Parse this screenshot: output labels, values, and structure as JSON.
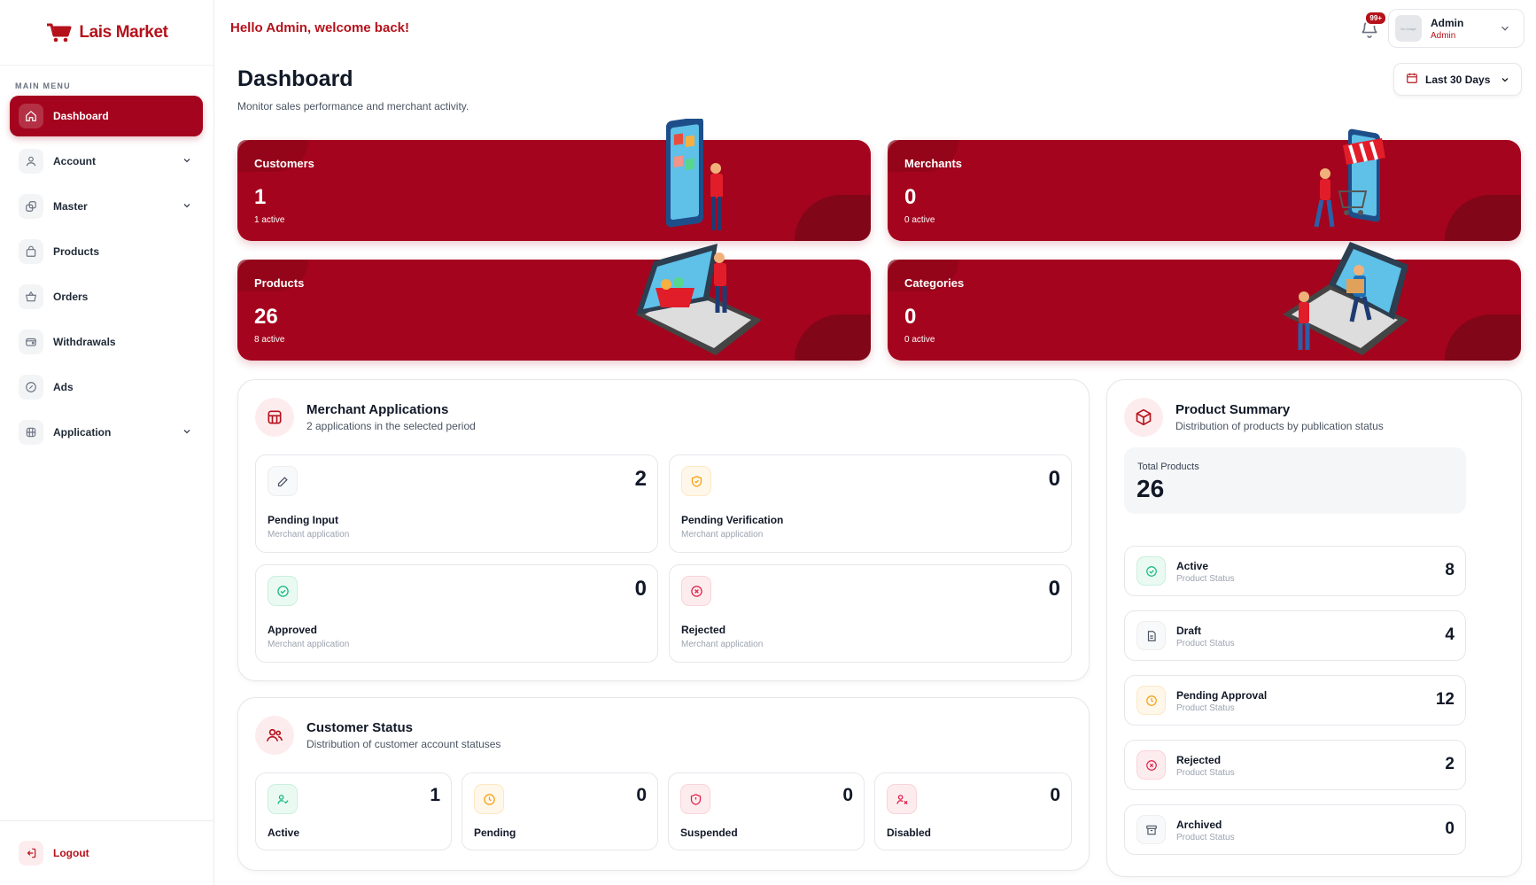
{
  "brand": {
    "name": "Lais Market"
  },
  "sidebar": {
    "menu_title": "MAIN MENU",
    "items": [
      {
        "label": "Dashboard",
        "icon": "home-icon"
      },
      {
        "label": "Account",
        "icon": "user-icon"
      },
      {
        "label": "Master",
        "icon": "layers-icon"
      },
      {
        "label": "Products",
        "icon": "bag-icon"
      },
      {
        "label": "Orders",
        "icon": "basket-icon"
      },
      {
        "label": "Withdrawals",
        "icon": "wallet-icon"
      },
      {
        "label": "Ads",
        "icon": "ad-icon"
      },
      {
        "label": "Application",
        "icon": "grid-icon"
      }
    ],
    "logout": "Logout"
  },
  "header": {
    "welcome": "Hello Admin, welcome back!",
    "notification_badge": "99+",
    "avatar_text": "No Image",
    "user_name": "Admin",
    "user_role": "Admin"
  },
  "page": {
    "title": "Dashboard",
    "subtitle": "Monitor sales performance and merchant activity.",
    "date_range": "Last 30 Days"
  },
  "stats": [
    {
      "label": "Customers",
      "value": "1",
      "active": "1 active"
    },
    {
      "label": "Merchants",
      "value": "0",
      "active": "0 active"
    },
    {
      "label": "Products",
      "value": "26",
      "active": "8 active"
    },
    {
      "label": "Categories",
      "value": "0",
      "active": "0 active"
    }
  ],
  "merchant_applications": {
    "title": "Merchant Applications",
    "subtitle": "2 applications in the selected period",
    "items": [
      {
        "label": "Pending Input",
        "meta": "Merchant application",
        "value": "2"
      },
      {
        "label": "Pending Verification",
        "meta": "Merchant application",
        "value": "0"
      },
      {
        "label": "Approved",
        "meta": "Merchant application",
        "value": "0"
      },
      {
        "label": "Rejected",
        "meta": "Merchant application",
        "value": "0"
      }
    ]
  },
  "customer_status": {
    "title": "Customer Status",
    "subtitle": "Distribution of customer account statuses",
    "items": [
      {
        "label": "Active",
        "value": "1"
      },
      {
        "label": "Pending",
        "value": "0"
      },
      {
        "label": "Suspended",
        "value": "0"
      },
      {
        "label": "Disabled",
        "value": "0"
      }
    ]
  },
  "product_summary": {
    "title": "Product Summary",
    "subtitle": "Distribution of products by publication status",
    "total_label": "Total Products",
    "total_value": "26",
    "items": [
      {
        "label": "Active",
        "meta": "Product Status",
        "value": "8"
      },
      {
        "label": "Draft",
        "meta": "Product Status",
        "value": "4"
      },
      {
        "label": "Pending Approval",
        "meta": "Product Status",
        "value": "12"
      },
      {
        "label": "Rejected",
        "meta": "Product Status",
        "value": "2"
      },
      {
        "label": "Archived",
        "meta": "Product Status",
        "value": "0"
      }
    ]
  },
  "colors": {
    "brand": "#a4041d",
    "accent": "#b5121b"
  }
}
